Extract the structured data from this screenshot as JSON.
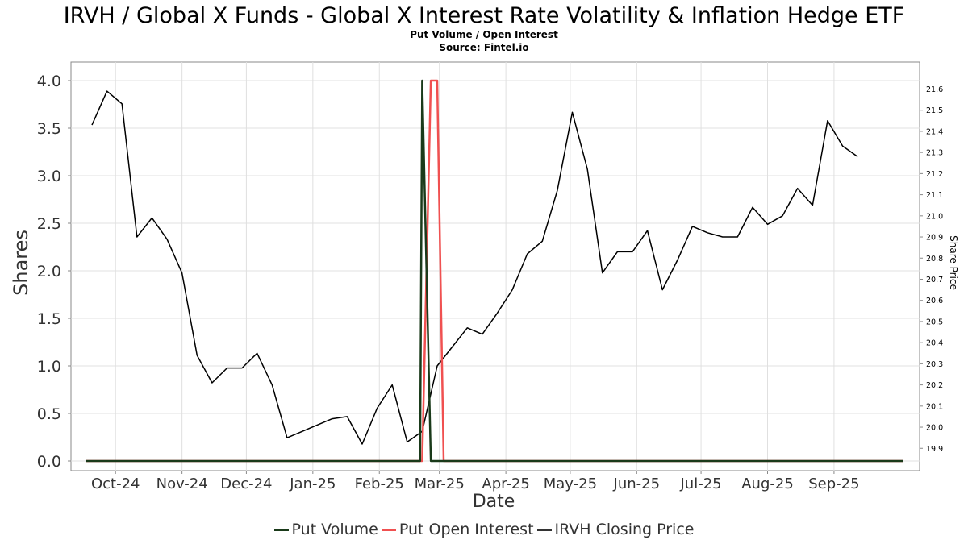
{
  "chart_data": {
    "type": "line",
    "title": "IRVH / Global X Funds - Global X Interest Rate Volatility & Inflation Hedge ETF",
    "subtitle": "Put Volume / Open Interest",
    "source": "Source: Fintel.io",
    "xlabel": "Date",
    "ylabel": "Shares",
    "y2label": "Share Price",
    "ylim": [
      0,
      4.0
    ],
    "y2lim": [
      19.84,
      21.64
    ],
    "yticks": [
      "0.0",
      "0.5",
      "1.0",
      "1.5",
      "2.0",
      "2.5",
      "3.0",
      "3.5",
      "4.0"
    ],
    "y2ticks": [
      "19.9",
      "20.0",
      "20.1",
      "20.2",
      "20.3",
      "20.4",
      "20.5",
      "20.6",
      "20.7",
      "20.8",
      "20.9",
      "21.0",
      "21.1",
      "21.2",
      "21.3",
      "21.4",
      "21.5",
      "21.6"
    ],
    "xticks": [
      "Oct-24",
      "Nov-24",
      "Dec-24",
      "Jan-25",
      "Feb-25",
      "Mar-25",
      "Apr-25",
      "May-25",
      "Jun-25",
      "Jul-25",
      "Aug-25",
      "Sep-25"
    ],
    "grid": true,
    "legend_position": "bottom",
    "series": [
      {
        "name": "Put Volume",
        "color": "#1a3a1a",
        "axis": "left",
        "points": [
          [
            "2024-09-17",
            0
          ],
          [
            "2025-02-20",
            0
          ],
          [
            "2025-02-21",
            4.0
          ],
          [
            "2025-02-25",
            0
          ],
          [
            "2025-10-03",
            0
          ]
        ]
      },
      {
        "name": "Put Open Interest",
        "color": "#f05050",
        "axis": "left",
        "points": [
          [
            "2024-09-17",
            0
          ],
          [
            "2025-02-21",
            0
          ],
          [
            "2025-02-25",
            4.0
          ],
          [
            "2025-02-28",
            4.0
          ],
          [
            "2025-03-03",
            0
          ],
          [
            "2025-10-03",
            0
          ]
        ]
      },
      {
        "name": "IRVH Closing Price",
        "color": "#000000",
        "axis": "right",
        "points": [
          [
            "2024-09-20",
            21.43
          ],
          [
            "2024-09-27",
            21.59
          ],
          [
            "2024-10-04",
            21.53
          ],
          [
            "2024-10-11",
            20.9
          ],
          [
            "2024-10-18",
            20.99
          ],
          [
            "2024-10-25",
            20.89
          ],
          [
            "2024-11-01",
            20.73
          ],
          [
            "2024-11-08",
            20.34
          ],
          [
            "2024-11-15",
            20.21
          ],
          [
            "2024-11-22",
            20.28
          ],
          [
            "2024-11-29",
            20.28
          ],
          [
            "2024-12-06",
            20.35
          ],
          [
            "2024-12-13",
            20.2
          ],
          [
            "2024-12-20",
            19.95
          ],
          [
            "2025-01-10",
            20.04
          ],
          [
            "2025-01-17",
            20.05
          ],
          [
            "2025-01-24",
            19.92
          ],
          [
            "2025-01-31",
            20.09
          ],
          [
            "2025-02-07",
            20.2
          ],
          [
            "2025-02-14",
            19.93
          ],
          [
            "2025-02-21",
            19.98
          ],
          [
            "2025-02-28",
            20.29
          ],
          [
            "2025-03-07",
            20.38
          ],
          [
            "2025-03-14",
            20.47
          ],
          [
            "2025-03-21",
            20.44
          ],
          [
            "2025-03-28",
            20.54
          ],
          [
            "2025-04-04",
            20.65
          ],
          [
            "2025-04-11",
            20.82
          ],
          [
            "2025-04-18",
            20.88
          ],
          [
            "2025-04-25",
            21.12
          ],
          [
            "2025-05-02",
            21.49
          ],
          [
            "2025-05-09",
            21.22
          ],
          [
            "2025-05-16",
            20.73
          ],
          [
            "2025-05-23",
            20.83
          ],
          [
            "2025-05-30",
            20.83
          ],
          [
            "2025-06-06",
            20.93
          ],
          [
            "2025-06-13",
            20.65
          ],
          [
            "2025-06-20",
            20.79
          ],
          [
            "2025-06-27",
            20.95
          ],
          [
            "2025-07-04",
            20.92
          ],
          [
            "2025-07-11",
            20.9
          ],
          [
            "2025-07-18",
            20.9
          ],
          [
            "2025-07-25",
            21.04
          ],
          [
            "2025-08-01",
            20.96
          ],
          [
            "2025-08-08",
            21.0
          ],
          [
            "2025-08-15",
            21.13
          ],
          [
            "2025-08-22",
            21.05
          ],
          [
            "2025-08-29",
            21.45
          ],
          [
            "2025-09-05",
            21.33
          ],
          [
            "2025-09-12",
            21.28
          ]
        ]
      }
    ]
  }
}
